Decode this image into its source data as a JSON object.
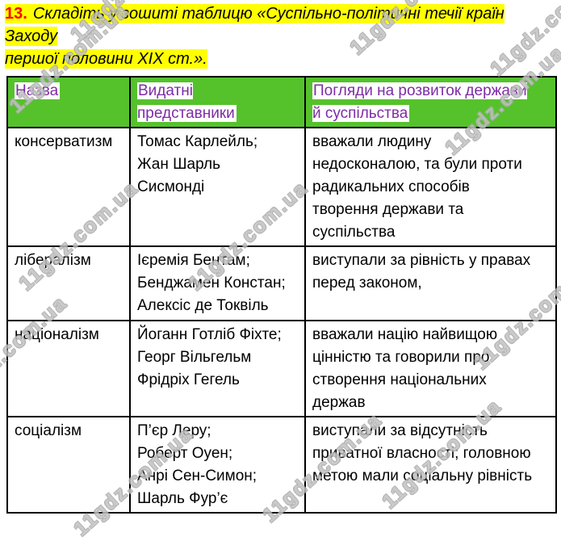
{
  "title": {
    "number": "13.",
    "text": "Складіть у зошиті таблицю «Суспільно-політичні течії країн Заходу\nпершої половини XIX ст.»."
  },
  "watermark": {
    "text": "11gdz.com.ua"
  },
  "colors": {
    "header_green": "#55c22c",
    "header_text_purple": "#7e2ba6",
    "title_highlight_yellow": "#ffff00",
    "number_red": "#fe0000",
    "border_black": "#000000"
  },
  "table": {
    "headers": {
      "name": "Назва",
      "representatives": "Видатні\nпредставники",
      "views": "Погляди на розвиток держави\nй суспільства"
    },
    "rows": [
      {
        "name": "консерватизм",
        "representatives": "Томас Карлейль;\nЖан Шарль\nСисмонді",
        "views": "вважали людину\nнедосконалою, та були проти\nрадикальних способів\nтворення держави та\nсуспільства"
      },
      {
        "name": "лібералізм",
        "representatives": "Ієремія Бентам;\nБенджамен Констан;\nАлексіс де Токвіль",
        "views": "виступали за рівність у правах\nперед законом,"
      },
      {
        "name": "націоналізм",
        "representatives": "Йоганн Готліб Фіхте;\nГеорг Вільгельм\nФрідріх Гегель",
        "views": "вважали націю найвищою\nцінністю та говорили про\nстворення національних\nдержав"
      },
      {
        "name": "соціалізм",
        "representatives": "П’єр Леру;\nРоберт Оуен;\nАнрі Сен-Симон;\nШарль Фур’є",
        "views": "виступали за відсутність\nприватної власності; головною\nметою мали соціальну рівність"
      }
    ]
  }
}
